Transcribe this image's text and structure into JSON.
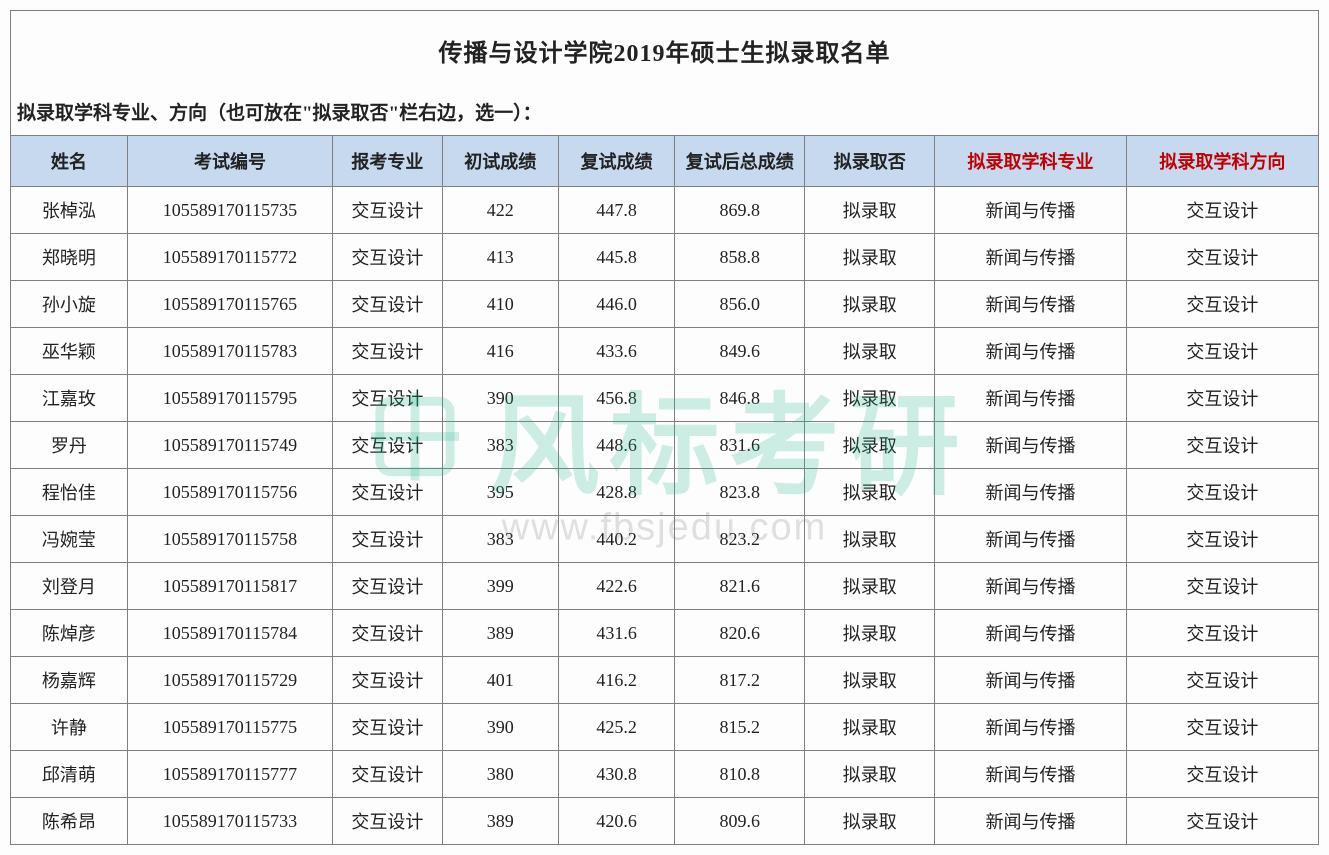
{
  "title": "传播与设计学院2019年硕士生拟录取名单",
  "subtitle": "拟录取学科专业、方向（也可放在\"拟录取否\"栏右边，选一）：",
  "watermark": {
    "main": "风标考研",
    "sub": "www.fbsjedu.com"
  },
  "columns": [
    {
      "label": "姓名",
      "red": false
    },
    {
      "label": "考试编号",
      "red": false
    },
    {
      "label": "报考专业",
      "red": false
    },
    {
      "label": "初试成绩",
      "red": false
    },
    {
      "label": "复试成绩",
      "red": false
    },
    {
      "label": "复试后总成绩",
      "red": false
    },
    {
      "label": "拟录取否",
      "red": false
    },
    {
      "label": "拟录取学科专业",
      "red": true
    },
    {
      "label": "拟录取学科方向",
      "red": true
    }
  ],
  "rows": [
    {
      "name": "张棹泓",
      "id": "105589170115735",
      "major": "交互设计",
      "s1": "422",
      "s2": "447.8",
      "total": "869.8",
      "admit": "拟录取",
      "subj": "新闻与传播",
      "dir": "交互设计"
    },
    {
      "name": "郑晓明",
      "id": "105589170115772",
      "major": "交互设计",
      "s1": "413",
      "s2": "445.8",
      "total": "858.8",
      "admit": "拟录取",
      "subj": "新闻与传播",
      "dir": "交互设计"
    },
    {
      "name": "孙小旋",
      "id": "105589170115765",
      "major": "交互设计",
      "s1": "410",
      "s2": "446.0",
      "total": "856.0",
      "admit": "拟录取",
      "subj": "新闻与传播",
      "dir": "交互设计"
    },
    {
      "name": "巫华颖",
      "id": "105589170115783",
      "major": "交互设计",
      "s1": "416",
      "s2": "433.6",
      "total": "849.6",
      "admit": "拟录取",
      "subj": "新闻与传播",
      "dir": "交互设计"
    },
    {
      "name": "江嘉玫",
      "id": "105589170115795",
      "major": "交互设计",
      "s1": "390",
      "s2": "456.8",
      "total": "846.8",
      "admit": "拟录取",
      "subj": "新闻与传播",
      "dir": "交互设计"
    },
    {
      "name": "罗丹",
      "id": "105589170115749",
      "major": "交互设计",
      "s1": "383",
      "s2": "448.6",
      "total": "831.6",
      "admit": "拟录取",
      "subj": "新闻与传播",
      "dir": "交互设计"
    },
    {
      "name": "程怡佳",
      "id": "105589170115756",
      "major": "交互设计",
      "s1": "395",
      "s2": "428.8",
      "total": "823.8",
      "admit": "拟录取",
      "subj": "新闻与传播",
      "dir": "交互设计"
    },
    {
      "name": "冯婉莹",
      "id": "105589170115758",
      "major": "交互设计",
      "s1": "383",
      "s2": "440.2",
      "total": "823.2",
      "admit": "拟录取",
      "subj": "新闻与传播",
      "dir": "交互设计"
    },
    {
      "name": "刘登月",
      "id": "105589170115817",
      "major": "交互设计",
      "s1": "399",
      "s2": "422.6",
      "total": "821.6",
      "admit": "拟录取",
      "subj": "新闻与传播",
      "dir": "交互设计"
    },
    {
      "name": "陈焯彦",
      "id": "105589170115784",
      "major": "交互设计",
      "s1": "389",
      "s2": "431.6",
      "total": "820.6",
      "admit": "拟录取",
      "subj": "新闻与传播",
      "dir": "交互设计"
    },
    {
      "name": "杨嘉辉",
      "id": "105589170115729",
      "major": "交互设计",
      "s1": "401",
      "s2": "416.2",
      "total": "817.2",
      "admit": "拟录取",
      "subj": "新闻与传播",
      "dir": "交互设计"
    },
    {
      "name": "许静",
      "id": "105589170115775",
      "major": "交互设计",
      "s1": "390",
      "s2": "425.2",
      "total": "815.2",
      "admit": "拟录取",
      "subj": "新闻与传播",
      "dir": "交互设计"
    },
    {
      "name": "邱清萌",
      "id": "105589170115777",
      "major": "交互设计",
      "s1": "380",
      "s2": "430.8",
      "total": "810.8",
      "admit": "拟录取",
      "subj": "新闻与传播",
      "dir": "交互设计"
    },
    {
      "name": "陈希昂",
      "id": "105589170115733",
      "major": "交互设计",
      "s1": "389",
      "s2": "420.6",
      "total": "809.6",
      "admit": "拟录取",
      "subj": "新闻与传播",
      "dir": "交互设计"
    }
  ],
  "style": {
    "header_bg": "#c7d9ef",
    "border_color": "#7f7f7f",
    "red_header_color": "#c00000",
    "text_color": "#222222",
    "bg_color": "#fdfdfd",
    "title_fontsize": 24,
    "cell_fontsize": 18,
    "watermark_color": "rgba(30,180,140,0.22)"
  }
}
